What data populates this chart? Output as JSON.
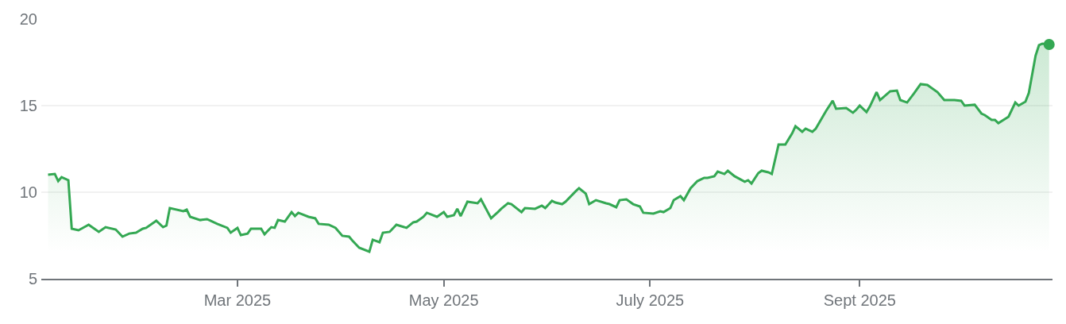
{
  "chart_data": {
    "type": "area",
    "x": [
      "2025-01-04",
      "2025-01-06",
      "2025-01-07",
      "2025-01-08",
      "2025-01-10",
      "2025-01-11",
      "2025-01-13",
      "2025-01-16",
      "2025-01-17",
      "2025-01-19",
      "2025-01-21",
      "2025-01-24",
      "2025-01-26",
      "2025-01-28",
      "2025-01-30",
      "2025-02-01",
      "2025-02-02",
      "2025-02-05",
      "2025-02-07",
      "2025-02-08",
      "2025-02-09",
      "2025-02-13",
      "2025-02-14",
      "2025-02-15",
      "2025-02-18",
      "2025-02-20",
      "2025-02-21",
      "2025-02-23",
      "2025-02-26",
      "2025-02-27",
      "2025-03-01",
      "2025-03-02",
      "2025-03-04",
      "2025-03-05",
      "2025-03-08",
      "2025-03-09",
      "2025-03-11",
      "2025-03-12",
      "2025-03-13",
      "2025-03-15",
      "2025-03-17",
      "2025-03-18",
      "2025-03-19",
      "2025-03-22",
      "2025-03-24",
      "2025-03-25",
      "2025-03-28",
      "2025-03-30",
      "2025-04-01",
      "2025-04-03",
      "2025-04-04",
      "2025-04-06",
      "2025-04-09",
      "2025-04-10",
      "2025-04-12",
      "2025-04-13",
      "2025-04-15",
      "2025-04-17",
      "2025-04-20",
      "2025-04-22",
      "2025-04-23",
      "2025-04-25",
      "2025-04-26",
      "2025-04-29",
      "2025-05-01",
      "2025-05-02",
      "2025-05-04",
      "2025-05-05",
      "2025-05-06",
      "2025-05-08",
      "2025-05-11",
      "2025-05-12",
      "2025-05-15",
      "2025-05-17",
      "2025-05-18",
      "2025-05-20",
      "2025-05-21",
      "2025-05-24",
      "2025-05-25",
      "2025-05-28",
      "2025-05-30",
      "2025-05-31",
      "2025-06-02",
      "2025-06-03",
      "2025-06-05",
      "2025-06-06",
      "2025-06-09",
      "2025-06-10",
      "2025-06-12",
      "2025-06-13",
      "2025-06-15",
      "2025-06-18",
      "2025-06-19",
      "2025-06-21",
      "2025-06-22",
      "2025-06-24",
      "2025-06-26",
      "2025-06-28",
      "2025-06-29",
      "2025-07-02",
      "2025-07-04",
      "2025-07-05",
      "2025-07-07",
      "2025-07-08",
      "2025-07-10",
      "2025-07-11",
      "2025-07-13",
      "2025-07-15",
      "2025-07-17",
      "2025-07-18",
      "2025-07-20",
      "2025-07-21",
      "2025-07-23",
      "2025-07-24",
      "2025-07-26",
      "2025-07-29",
      "2025-07-30",
      "2025-07-31",
      "2025-08-02",
      "2025-08-03",
      "2025-08-05",
      "2025-08-06",
      "2025-08-08",
      "2025-08-10",
      "2025-08-12",
      "2025-08-13",
      "2025-08-15",
      "2025-08-16",
      "2025-08-18",
      "2025-08-19",
      "2025-08-22",
      "2025-08-24",
      "2025-08-25",
      "2025-08-28",
      "2025-08-30",
      "2025-08-31",
      "2025-09-01",
      "2025-09-03",
      "2025-09-04",
      "2025-09-06",
      "2025-09-07",
      "2025-09-10",
      "2025-09-12",
      "2025-09-13",
      "2025-09-15",
      "2025-09-17",
      "2025-09-19",
      "2025-09-21",
      "2025-09-24",
      "2025-09-26",
      "2025-09-29",
      "2025-10-01",
      "2025-10-02",
      "2025-10-05",
      "2025-10-07",
      "2025-10-08",
      "2025-10-10",
      "2025-10-11",
      "2025-10-12",
      "2025-10-15",
      "2025-10-17",
      "2025-10-18",
      "2025-10-20",
      "2025-10-21",
      "2025-10-23",
      "2025-10-24",
      "2025-10-25",
      "2025-10-27"
    ],
    "series": [
      {
        "color": "#34a853",
        "values": [
          11.01,
          11.05,
          10.64,
          10.87,
          10.69,
          7.89,
          7.8,
          8.12,
          7.98,
          7.71,
          7.98,
          7.84,
          7.43,
          7.61,
          7.66,
          7.89,
          7.94,
          8.35,
          7.98,
          8.07,
          9.08,
          8.9,
          8.99,
          8.58,
          8.39,
          8.44,
          8.35,
          8.17,
          7.94,
          7.66,
          7.94,
          7.52,
          7.61,
          7.89,
          7.89,
          7.57,
          7.98,
          7.94,
          8.39,
          8.3,
          8.85,
          8.62,
          8.81,
          8.58,
          8.49,
          8.17,
          8.12,
          7.94,
          7.48,
          7.43,
          7.2,
          6.79,
          6.56,
          7.25,
          7.11,
          7.66,
          7.71,
          8.12,
          7.94,
          8.26,
          8.3,
          8.58,
          8.81,
          8.58,
          8.85,
          8.58,
          8.67,
          9.04,
          8.62,
          9.45,
          9.36,
          9.59,
          8.49,
          8.85,
          9.04,
          9.36,
          9.31,
          8.85,
          9.08,
          9.04,
          9.22,
          9.08,
          9.5,
          9.4,
          9.31,
          9.45,
          10.05,
          10.23,
          9.91,
          9.31,
          9.54,
          9.36,
          9.31,
          9.13,
          9.54,
          9.59,
          9.31,
          9.17,
          8.81,
          8.76,
          8.9,
          8.85,
          9.08,
          9.54,
          9.77,
          9.54,
          10.23,
          10.64,
          10.83,
          10.83,
          10.92,
          11.19,
          11.05,
          11.24,
          10.92,
          10.6,
          10.69,
          10.5,
          11.1,
          11.24,
          11.15,
          11.05,
          12.75,
          12.75,
          13.39,
          13.81,
          13.49,
          13.67,
          13.49,
          13.67,
          14.68,
          15.28,
          14.82,
          14.86,
          14.59,
          14.77,
          15.0,
          14.63,
          14.95,
          15.78,
          15.32,
          15.83,
          15.87,
          15.32,
          15.18,
          15.69,
          16.24,
          16.19,
          15.78,
          15.32,
          15.32,
          15.28,
          15.0,
          15.05,
          14.54,
          14.45,
          14.17,
          14.17,
          13.99,
          14.36,
          15.18,
          15.0,
          15.23,
          15.73,
          17.89,
          18.49,
          18.58,
          18.53
        ]
      }
    ],
    "xlim": [
      "2025-01-02",
      "2025-10-28"
    ],
    "xticks": [
      {
        "value": "2025-03-01",
        "label": "Mar 2025"
      },
      {
        "value": "2025-05-01",
        "label": "May 2025"
      },
      {
        "value": "2025-07-01",
        "label": "July 2025"
      },
      {
        "value": "2025-09-01",
        "label": "Sept 2025"
      }
    ],
    "ylim": [
      5,
      20
    ],
    "yticks": [
      5,
      10,
      15,
      20
    ],
    "grid": "y"
  }
}
